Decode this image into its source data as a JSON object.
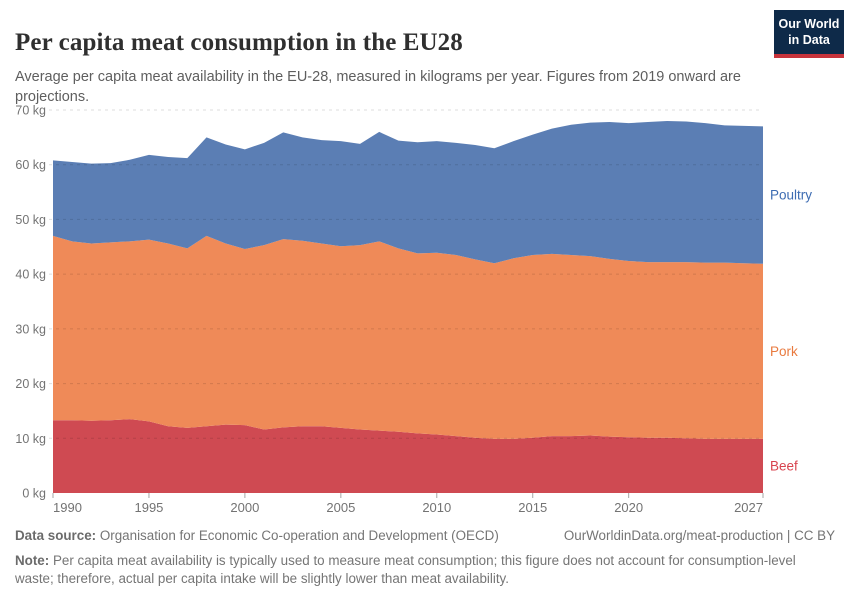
{
  "header": {
    "title": "Per capita meat consumption in the EU28",
    "subtitle": "Average per capita meat availability in the EU-28, measured in kilograms per year. Figures from 2019 onward are projections.",
    "logo": {
      "line1": "Our World",
      "line2": "in Data",
      "bg_color": "#0e2a49",
      "accent_color": "#c7333b"
    }
  },
  "chart_data": {
    "type": "area",
    "stacked": true,
    "title": "Per capita meat consumption in the EU28",
    "xlabel": "",
    "ylabel": "kilograms per year",
    "ylim": [
      0,
      70
    ],
    "yticks": [
      0,
      10,
      20,
      30,
      40,
      50,
      60,
      70
    ],
    "ytick_suffix": " kg",
    "xticks": [
      1990,
      1995,
      2000,
      2005,
      2010,
      2015,
      2020,
      2027
    ],
    "grid": "dashed-horizontal",
    "legend_position": "right-edge-labels",
    "x": [
      1990,
      1991,
      1992,
      1993,
      1994,
      1995,
      1996,
      1997,
      1998,
      1999,
      2000,
      2001,
      2002,
      2003,
      2004,
      2005,
      2006,
      2007,
      2008,
      2009,
      2010,
      2011,
      2012,
      2013,
      2014,
      2015,
      2016,
      2017,
      2018,
      2019,
      2020,
      2021,
      2022,
      2023,
      2024,
      2025,
      2026,
      2027
    ],
    "series": [
      {
        "name": "Beef",
        "color": "#cf4a52",
        "label_color": "#d8434e",
        "values": [
          13.3,
          13.3,
          13.2,
          13.3,
          13.5,
          13.1,
          12.2,
          11.9,
          12.2,
          12.5,
          12.4,
          11.6,
          12.0,
          12.2,
          12.2,
          11.9,
          11.6,
          11.4,
          11.2,
          10.9,
          10.7,
          10.4,
          10.1,
          9.9,
          9.9,
          10.1,
          10.4,
          10.4,
          10.5,
          10.3,
          10.2,
          10.1,
          10.1,
          10.0,
          9.9,
          9.9,
          9.9,
          9.9
        ]
      },
      {
        "name": "Pork",
        "color": "#ef8a58",
        "label_color": "#e97a3f",
        "values": [
          33.7,
          32.7,
          32.4,
          32.5,
          32.5,
          33.2,
          33.4,
          32.8,
          34.8,
          33.1,
          32.2,
          33.7,
          34.4,
          33.9,
          33.4,
          33.2,
          33.7,
          34.6,
          33.5,
          32.9,
          33.2,
          33.1,
          32.6,
          32.1,
          33.0,
          33.4,
          33.3,
          33.1,
          32.8,
          32.5,
          32.2,
          32.1,
          32.1,
          32.2,
          32.2,
          32.2,
          32.1,
          32.0
        ]
      },
      {
        "name": "Poultry",
        "color": "#5b7eb4",
        "label_color": "#3d6cb2",
        "values": [
          13.8,
          14.5,
          14.6,
          14.5,
          14.9,
          15.5,
          15.8,
          16.5,
          18.0,
          18.1,
          18.2,
          18.7,
          19.5,
          18.9,
          18.9,
          19.2,
          18.5,
          20.0,
          19.7,
          20.3,
          20.4,
          20.5,
          20.9,
          21.0,
          21.4,
          22.0,
          22.9,
          23.8,
          24.4,
          25.0,
          25.2,
          25.6,
          25.8,
          25.7,
          25.5,
          25.1,
          25.1,
          25.1
        ]
      }
    ]
  },
  "footer": {
    "source_label": "Data source:",
    "source_text": "Organisation for Economic Co-operation and Development (OECD)",
    "link_text": "OurWorldinData.org/meat-production | CC BY",
    "note_label": "Note:",
    "note_text": "Per capita meat availability is typically used to measure meat consumption; this figure does not account for consumption-level waste; therefore, actual per capita intake will be slightly lower than meat availability."
  }
}
